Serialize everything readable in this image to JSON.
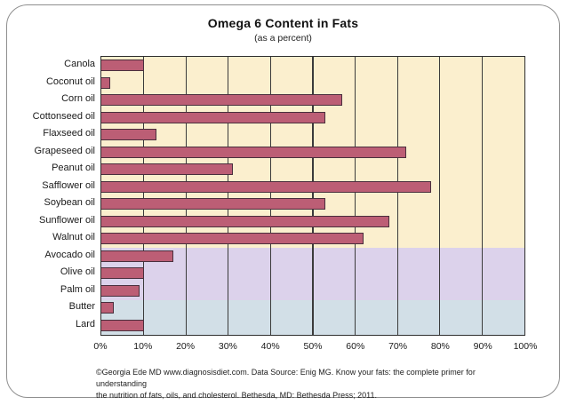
{
  "card": {
    "title": "Omega 6 Content in Fats",
    "subtitle": "(as a percent)",
    "footer_line1": "©Georgia Ede MD www.diagnosisdiet.com. Data Source: Enig MG. Know your fats: the complete primer for understanding",
    "footer_line2": "the nutrition of fats, oils, and cholesterol. Bethesda, MD: Bethesda Press; 2011."
  },
  "chart_data": {
    "type": "bar",
    "orientation": "horizontal",
    "title": "Omega 6 Content in Fats",
    "subtitle": "(as a percent)",
    "categories": [
      "Canola",
      "Coconut oil",
      "Corn oil",
      "Cottonseed oil",
      "Flaxseed oil",
      "Grapeseed oil",
      "Peanut oil",
      "Safflower oil",
      "Soybean oil",
      "Sunflower oil",
      "Walnut oil",
      "Avocado oil",
      "Olive oil",
      "Palm oil",
      "Butter",
      "Lard"
    ],
    "values": [
      10,
      2,
      57,
      53,
      13,
      72,
      31,
      78,
      53,
      68,
      62,
      17,
      10,
      9,
      3,
      10
    ],
    "value_unit": "%",
    "xlim": [
      0,
      100
    ],
    "x_tick_step": 10,
    "x_tick_labels": [
      "0%",
      "10%",
      "20%",
      "30%",
      "40%",
      "50%",
      "60%",
      "70%",
      "80%",
      "90%",
      "100%"
    ],
    "grid": "vertical",
    "legend": "none",
    "background_bands": [
      {
        "name": "seed-vegetable-oils",
        "rows": 11,
        "color": "#FBEFCE"
      },
      {
        "name": "fruit-oils",
        "rows": 3,
        "color": "#DCD2EB"
      },
      {
        "name": "animal-fats",
        "rows": 2,
        "color": "#D2DFE7"
      }
    ],
    "colors": {
      "bar_fill": "#BC5E75",
      "bar_border": "#4A2F3D",
      "gridline": "#3B3B3B",
      "plot_border": "#2E2E2E",
      "card_border": "#8F8F8F"
    }
  }
}
